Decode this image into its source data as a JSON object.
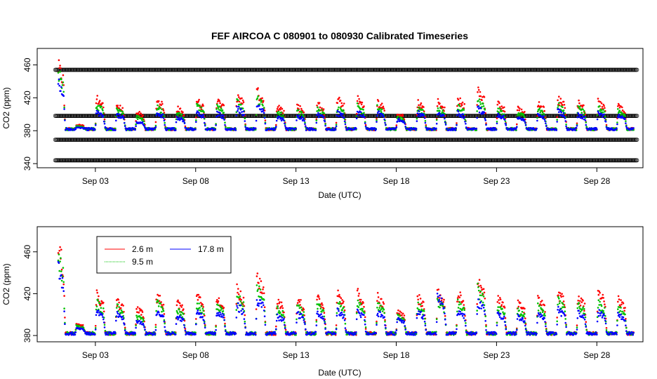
{
  "title": "FEF   AIRCOA  C    080901  to  080930   Calibrated Timeseries",
  "colors": {
    "2.6 m": "#ff0000",
    "9.5 m": "#00c000",
    "17.8 m": "#0000ff",
    "frame": "#000000"
  },
  "chart_data": [
    {
      "type": "scatter",
      "panel": "top",
      "xlabel": "Date (UTC)",
      "ylabel": "CO2 (ppm)",
      "xticks": [
        "Sep 03",
        "Sep 08",
        "Sep 13",
        "Sep 18",
        "Sep 23",
        "Sep 28"
      ],
      "xtick_values": [
        3,
        8,
        13,
        18,
        23,
        28
      ],
      "xlim": [
        0.1,
        30.3
      ],
      "yticks": [
        "340",
        "380",
        "420",
        "460"
      ],
      "ytick_values": [
        340,
        380,
        420,
        460
      ],
      "ylim": [
        335,
        480
      ],
      "reference_lines": [
        {
          "value": 344.0,
          "x_start": 1.0,
          "x_end": 30.0
        },
        {
          "value": 369.0,
          "x_start": 1.0,
          "x_end": 30.0
        },
        {
          "value": 398.0,
          "x_start": 1.0,
          "x_end": 30.0
        },
        {
          "value": 454.0,
          "x_start": 1.0,
          "x_end": 30.0
        }
      ],
      "daily_peaks": {
        "days": [
          1,
          2,
          3,
          4,
          5,
          6,
          7,
          8,
          9,
          10,
          11,
          12,
          13,
          14,
          15,
          16,
          17,
          18,
          19,
          20,
          21,
          22,
          23,
          24,
          25,
          26,
          27,
          28,
          29
        ],
        "2.6 m": [
          470,
          388,
          423,
          414,
          405,
          421,
          410,
          420,
          420,
          426,
          432,
          412,
          413,
          416,
          422,
          422,
          418,
          403,
          417,
          419,
          422,
          433,
          416,
          410,
          415,
          423,
          417,
          418,
          413
        ],
        "9.5 m": [
          460,
          386,
          414,
          408,
          398,
          412,
          404,
          412,
          412,
          418,
          422,
          405,
          406,
          409,
          412,
          412,
          410,
          398,
          410,
          410,
          412,
          420,
          408,
          404,
          408,
          414,
          410,
          410,
          406
        ],
        "17.8 m": [
          450,
          384,
          405,
          402,
          392,
          404,
          398,
          405,
          404,
          410,
          412,
          398,
          400,
          402,
          404,
          405,
          404,
          395,
          404,
          404,
          404,
          410,
          402,
          398,
          402,
          406,
          402,
          404,
          400
        ]
      },
      "series": [
        {
          "name": "2.6 m"
        },
        {
          "name": "9.5 m"
        },
        {
          "name": "17.8 m"
        }
      ]
    },
    {
      "type": "scatter",
      "panel": "bottom",
      "xlabel": "Date (UTC)",
      "ylabel": "CO2 (ppm)",
      "xticks": [
        "Sep 03",
        "Sep 08",
        "Sep 13",
        "Sep 18",
        "Sep 23",
        "Sep 28"
      ],
      "xtick_values": [
        3,
        8,
        13,
        18,
        23,
        28
      ],
      "xlim": [
        0.1,
        30.3
      ],
      "yticks": [
        "380",
        "420",
        "460"
      ],
      "ytick_values": [
        380,
        420,
        460
      ],
      "ylim": [
        374,
        484
      ],
      "legend": {
        "placement": "top-left",
        "entries": [
          {
            "label": "2.6 m",
            "color": "#ff0000"
          },
          {
            "label": "9.5 m",
            "color": "#00c000"
          },
          {
            "label": "17.8 m",
            "color": "#0000ff"
          }
        ]
      },
      "daily_peaks": {
        "days": [
          1,
          2,
          3,
          4,
          5,
          6,
          7,
          8,
          9,
          10,
          11,
          12,
          13,
          14,
          15,
          16,
          17,
          18,
          19,
          20,
          21,
          22,
          23,
          24,
          25,
          26,
          27,
          28,
          29
        ],
        "2.6 m": [
          475,
          392,
          422,
          416,
          408,
          422,
          414,
          420,
          420,
          428,
          440,
          416,
          418,
          420,
          424,
          424,
          420,
          406,
          420,
          424,
          424,
          440,
          418,
          414,
          418,
          425,
          420,
          425,
          418
        ],
        "9.5 m": [
          465,
          390,
          414,
          410,
          400,
          414,
          406,
          412,
          412,
          420,
          430,
          408,
          410,
          412,
          414,
          414,
          412,
          400,
          412,
          416,
          414,
          428,
          410,
          406,
          410,
          416,
          412,
          414,
          410
        ],
        "17.8 m": [
          455,
          388,
          405,
          403,
          395,
          405,
          400,
          405,
          405,
          412,
          418,
          400,
          403,
          404,
          406,
          406,
          405,
          397,
          405,
          420,
          406,
          416,
          403,
          400,
          403,
          407,
          404,
          405,
          402
        ]
      },
      "series": [
        {
          "name": "2.6 m"
        },
        {
          "name": "9.5 m"
        },
        {
          "name": "17.8 m"
        }
      ]
    }
  ]
}
